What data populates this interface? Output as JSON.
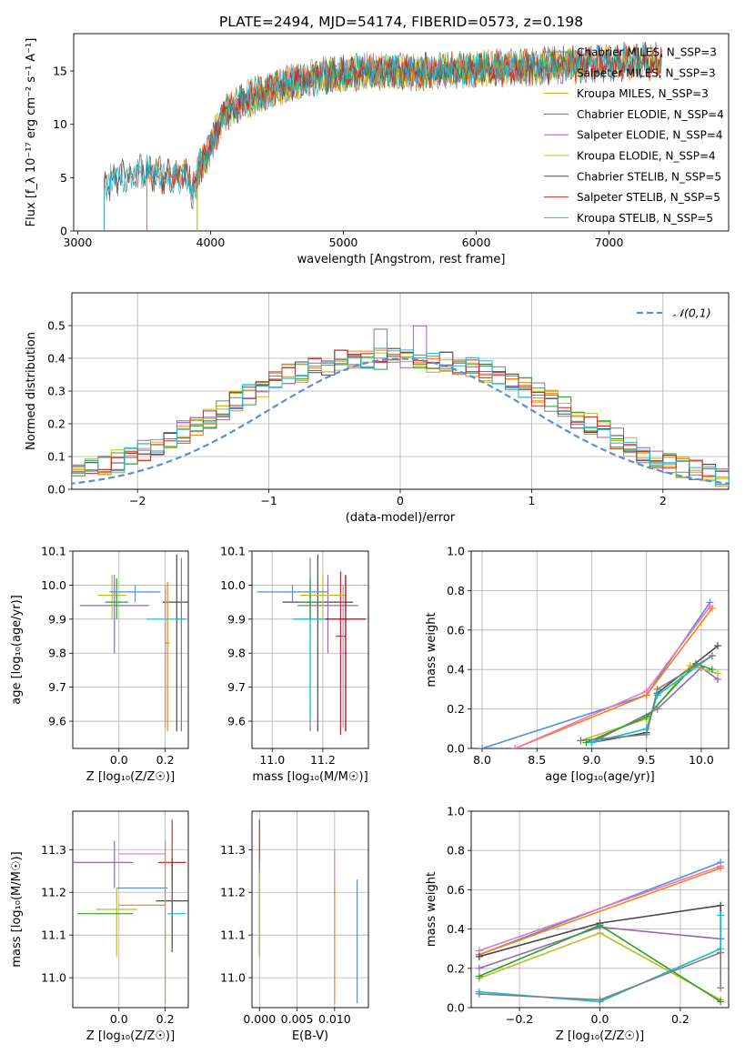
{
  "chart_data": [
    {
      "id": "spectrum",
      "type": "line",
      "title": "PLATE=2494, MJD=54174, FIBERID=0573, z=0.198",
      "xlabel": "wavelength [Angstrom, rest frame]",
      "ylabel": "Flux [f_λ 10⁻¹⁷ erg cm⁻² s⁻¹ A⁻¹]",
      "xlim": [
        2970,
        7900
      ],
      "ylim": [
        0,
        18.5
      ],
      "xticks": [
        3000,
        4000,
        5000,
        6000,
        7000
      ],
      "yticks": [
        0,
        5,
        10,
        15
      ],
      "legend_position": "top-right",
      "series": [
        {
          "name": "Chabrier MILES, N_SSP=3",
          "color": "#7f7f7f",
          "x_range": [
            3200,
            7300
          ]
        },
        {
          "name": "Salpeter MILES, N_SSP=3",
          "color": "#ff7f0e",
          "x_range": [
            3520,
            7400
          ]
        },
        {
          "name": "Kroupa MILES, N_SSP=3",
          "color": "#c8a020",
          "x_range": [
            3900,
            7400
          ]
        },
        {
          "name": "Chabrier ELODIE, N_SSP=4",
          "color": "#2ca02c",
          "x_range": [
            3900,
            6800
          ]
        },
        {
          "name": "Salpeter ELODIE, N_SSP=4",
          "color": "#9467bd",
          "x_range": [
            3900,
            6800
          ]
        },
        {
          "name": "Kroupa ELODIE, N_SSP=4",
          "color": "#bcbd22",
          "x_range": [
            3900,
            6800
          ]
        },
        {
          "name": "Chabrier STELIB, N_SSP=5",
          "color": "#4a4a4a",
          "x_range": [
            3200,
            7400
          ]
        },
        {
          "name": "Salpeter STELIB, N_SSP=5",
          "color": "#d62728",
          "x_range": [
            3520,
            7400
          ]
        },
        {
          "name": "Kroupa STELIB, N_SSP=5",
          "color": "#17becf",
          "x_range": [
            3200,
            7300
          ]
        }
      ],
      "trend": {
        "x": [
          3200,
          3300,
          3500,
          3700,
          3850,
          3950,
          4000,
          4100,
          4300,
          4500,
          4700,
          5000,
          5200,
          5500,
          5800,
          6100,
          6500,
          6800,
          7000,
          7300
        ],
        "y": [
          4.0,
          5.0,
          5.5,
          5.2,
          5.0,
          6.5,
          8.0,
          11.0,
          12.5,
          13.5,
          14.2,
          14.8,
          15.0,
          14.9,
          15.0,
          15.2,
          15.4,
          15.6,
          15.8,
          15.9
        ]
      }
    },
    {
      "id": "residual-histogram",
      "type": "area",
      "xlabel": "(data-model)/error",
      "ylabel": "Normed distribution",
      "xlim": [
        -2.5,
        2.5
      ],
      "ylim": [
        0,
        0.6
      ],
      "xticks": [
        -2,
        -1,
        0,
        1,
        2
      ],
      "yticks": [
        0.0,
        0.1,
        0.2,
        0.3,
        0.4,
        0.5
      ],
      "xtick_labels": [
        "−2",
        "−1",
        "0",
        "1",
        "2"
      ],
      "legend_position": "top-right",
      "reference_label": "𝒩(0,1)",
      "reference_color": "#5b8dd9",
      "bin_width": 0.1,
      "mean_profile": [
        0.02,
        0.025,
        0.03,
        0.035,
        0.04,
        0.05,
        0.06,
        0.07,
        0.085,
        0.1,
        0.115,
        0.135,
        0.155,
        0.175,
        0.2,
        0.22,
        0.24,
        0.27,
        0.29,
        0.31,
        0.33,
        0.35,
        0.36,
        0.37,
        0.38,
        0.39,
        0.39,
        0.4,
        0.4,
        0.4,
        0.4,
        0.4,
        0.39,
        0.39,
        0.38,
        0.37,
        0.36,
        0.34,
        0.33,
        0.31,
        0.29,
        0.27,
        0.25,
        0.22,
        0.2,
        0.18,
        0.155,
        0.135,
        0.115,
        0.1,
        0.085,
        0.07,
        0.06,
        0.05,
        0.04,
        0.035,
        0.03,
        0.025,
        0.02,
        0.02
      ],
      "series": [
        {
          "color": "#7f7f7f"
        },
        {
          "color": "#ff7f0e"
        },
        {
          "color": "#c8a020"
        },
        {
          "color": "#2ca02c"
        },
        {
          "color": "#9467bd"
        },
        {
          "color": "#bcbd22"
        },
        {
          "color": "#4a4a4a"
        },
        {
          "color": "#d62728"
        },
        {
          "color": "#17becf"
        }
      ]
    },
    {
      "id": "age-vs-z",
      "type": "scatter",
      "xlabel": "Z [log₁₀(Z/Z☉)]",
      "ylabel": "age  [log₁₀(age/yr)]",
      "xlim": [
        -0.2,
        0.3
      ],
      "ylim": [
        9.52,
        10.1
      ],
      "xticks": [
        0.0,
        0.2
      ],
      "yticks": [
        9.6,
        9.7,
        9.8,
        9.9,
        10.0,
        10.1
      ],
      "points": [
        {
          "x": 0.25,
          "y": 9.95,
          "xerr": 0.06,
          "yerr": [
            0.38,
            0.14
          ],
          "color": "#4a4a4a"
        },
        {
          "x": 0.27,
          "y": 9.9,
          "xerr": 0.02,
          "yerr": [
            0.33,
            0.18
          ],
          "color": "#7f7f7f"
        },
        {
          "x": 0.2,
          "y": 9.9,
          "xerr": 0.08,
          "yerr": [
            0.3,
            0.1
          ],
          "color": "#17becf"
        },
        {
          "x": 0.21,
          "y": 9.83,
          "xerr": 0.01,
          "yerr": [
            0.26,
            0.18
          ],
          "color": "#ff7f0e"
        },
        {
          "x": 0.2,
          "y": 9.8,
          "xerr": 0.005,
          "yerr": [
            0.22,
            0.2
          ],
          "color": "#e377c2"
        },
        {
          "x": -0.02,
          "y": 9.94,
          "xerr": 0.15,
          "yerr": [
            0.14,
            0.09
          ],
          "color": "#9467bd"
        },
        {
          "x": -0.03,
          "y": 9.97,
          "xerr": 0.06,
          "yerr": [
            0.07,
            0.06
          ],
          "color": "#bcbd22"
        },
        {
          "x": -0.01,
          "y": 9.95,
          "xerr": 0.05,
          "yerr": [
            0.05,
            0.07
          ],
          "color": "#2ca02c"
        },
        {
          "x": 0.07,
          "y": 9.98,
          "xerr": 0.11,
          "yerr": [
            0.03,
            0.02
          ],
          "color": "#5b8dd9"
        }
      ]
    },
    {
      "id": "age-vs-mass",
      "type": "scatter",
      "xlabel": "mass [log₁₀(M/M☉)]",
      "ylabel": "",
      "xlim": [
        10.92,
        11.38
      ],
      "ylim": [
        9.52,
        10.1
      ],
      "xticks": [
        11.0,
        11.2
      ],
      "yticks": [
        9.6,
        9.7,
        9.8,
        9.9,
        10.0,
        10.1
      ],
      "points": [
        {
          "x": 11.18,
          "y": 9.95,
          "xerr": 0.14,
          "yerr": [
            0.38,
            0.14
          ],
          "color": "#4a4a4a"
        },
        {
          "x": 11.15,
          "y": 9.9,
          "xerr": 0.06,
          "yerr": [
            0.33,
            0.18
          ],
          "color": "#7f7f7f"
        },
        {
          "x": 11.15,
          "y": 9.9,
          "xerr": 0.07,
          "yerr": [
            0.3,
            0.1
          ],
          "color": "#17becf"
        },
        {
          "x": 11.27,
          "y": 9.85,
          "xerr": 0.02,
          "yerr": [
            0.29,
            0.19
          ],
          "color": "#d62728"
        },
        {
          "x": 11.28,
          "y": 9.8,
          "xerr": 0.015,
          "yerr": [
            0.22,
            0.2
          ],
          "color": "#e377c2"
        },
        {
          "x": 11.22,
          "y": 9.94,
          "xerr": 0.12,
          "yerr": [
            0.14,
            0.09
          ],
          "color": "#9467bd"
        },
        {
          "x": 11.2,
          "y": 9.97,
          "xerr": 0.09,
          "yerr": [
            0.07,
            0.06
          ],
          "color": "#bcbd22"
        },
        {
          "x": 11.15,
          "y": 9.95,
          "xerr": 0.04,
          "yerr": [
            0.05,
            0.07
          ],
          "color": "#2ca02c"
        },
        {
          "x": 11.08,
          "y": 9.98,
          "xerr": 0.14,
          "yerr": [
            0.03,
            0.02
          ],
          "color": "#5b8dd9"
        },
        {
          "x": 11.29,
          "y": 9.9,
          "xerr": 0.08,
          "yerr": [
            0.33,
            0.13
          ],
          "color": "#8b0000"
        }
      ]
    },
    {
      "id": "mass-weight-vs-age",
      "type": "line",
      "xlabel": "age  [log₁₀(age/yr)]",
      "ylabel": "mass weight",
      "xlim": [
        7.9,
        10.25
      ],
      "ylim": [
        0,
        1.0
      ],
      "xticks": [
        8.0,
        8.5,
        9.0,
        9.5,
        10.0
      ],
      "yticks": [
        0.0,
        0.2,
        0.4,
        0.6,
        0.8,
        1.0
      ],
      "series": [
        {
          "color": "#5b8dd9",
          "x": [
            8.0,
            9.5,
            10.08
          ],
          "y": [
            0.0,
            0.27,
            0.74
          ]
        },
        {
          "color": "#ff7f0e",
          "x": [
            8.3,
            9.5,
            10.1
          ],
          "y": [
            0.0,
            0.27,
            0.71
          ]
        },
        {
          "color": "#e377c2",
          "x": [
            8.3,
            9.5,
            10.08
          ],
          "y": [
            0.0,
            0.29,
            0.72
          ]
        },
        {
          "color": "#9467bd",
          "x": [
            9.0,
            9.6,
            10.0,
            10.15
          ],
          "y": [
            0.03,
            0.2,
            0.41,
            0.35
          ]
        },
        {
          "color": "#4a4a4a",
          "x": [
            9.0,
            9.5,
            9.6,
            10.15
          ],
          "y": [
            0.03,
            0.08,
            0.28,
            0.52
          ]
        },
        {
          "color": "#bcbd22",
          "x": [
            8.9,
            9.5,
            9.9,
            10.15
          ],
          "y": [
            0.04,
            0.15,
            0.42,
            0.38
          ]
        },
        {
          "color": "#2ca02c",
          "x": [
            8.95,
            9.5,
            9.95,
            10.1
          ],
          "y": [
            0.03,
            0.16,
            0.43,
            0.4
          ]
        },
        {
          "color": "#17becf",
          "x": [
            9.0,
            9.5,
            9.6,
            10.1
          ],
          "y": [
            0.03,
            0.1,
            0.27,
            0.47
          ]
        },
        {
          "color": "#7f7f7f",
          "x": [
            8.9,
            9.5,
            9.6,
            10.1
          ],
          "y": [
            0.04,
            0.07,
            0.3,
            0.47
          ]
        }
      ]
    },
    {
      "id": "mass-vs-z",
      "type": "scatter",
      "xlabel": "Z [log₁₀(Z/Z☉)]",
      "ylabel": "mass [log₁₀(M/M☉)]",
      "xlim": [
        -0.2,
        0.3
      ],
      "ylim": [
        10.93,
        11.39
      ],
      "xticks": [
        0.0,
        0.2
      ],
      "yticks": [
        11.0,
        11.1,
        11.2,
        11.3
      ],
      "points": [
        {
          "x": 0.23,
          "y": 11.27,
          "xerr": 0.06,
          "yerr": [
            0.04,
            0.1
          ],
          "color": "#d62728"
        },
        {
          "x": 0.1,
          "y": 11.29,
          "xerr": 0.1,
          "yerr": [
            0.0,
            0.0
          ],
          "color": "#e377c2"
        },
        {
          "x": -0.08,
          "y": 11.27,
          "xerr": 0.14,
          "yerr": [
            0.0,
            0.0
          ],
          "color": "#9467bd"
        },
        {
          "x": 0.1,
          "y": 11.21,
          "xerr": 0.11,
          "yerr": [
            0.0,
            0.0
          ],
          "color": "#5b8dd9"
        },
        {
          "x": 0.1,
          "y": 11.17,
          "xerr": 0.1,
          "yerr": [
            0.0,
            0.0
          ],
          "color": "#ff7f0e"
        },
        {
          "x": 0.23,
          "y": 11.18,
          "xerr": 0.07,
          "yerr": [
            0.12,
            0.1
          ],
          "color": "#4a4a4a"
        },
        {
          "x": 0.25,
          "y": 11.15,
          "xerr": 0.04,
          "yerr": [
            0.0,
            0.0
          ],
          "color": "#17becf"
        },
        {
          "x": -0.01,
          "y": 11.16,
          "xerr": 0.09,
          "yerr": [
            0.11,
            0.05
          ],
          "color": "#bcbd22"
        },
        {
          "x": -0.06,
          "y": 11.15,
          "xerr": 0.12,
          "yerr": [
            0.0,
            0.0
          ],
          "color": "#2ca02c"
        },
        {
          "x": 0.2,
          "y": 11.2,
          "xerr": 0.0,
          "yerr": [
            0.26,
            0.12
          ],
          "color": "#ff7f0e"
        },
        {
          "x": -0.02,
          "y": 11.3,
          "xerr": 0.0,
          "yerr": [
            0.09,
            0.02
          ],
          "color": "#9467bd"
        }
      ]
    },
    {
      "id": "mass-vs-ebv",
      "type": "scatter",
      "xlabel": "E(B-V)",
      "ylabel": "",
      "xlim": [
        -0.001,
        0.0145
      ],
      "ylim": [
        10.93,
        11.39
      ],
      "xticks": [
        0.0,
        0.005,
        0.01
      ],
      "xtick_labels": [
        "0.000",
        "0.005",
        "0.010"
      ],
      "yticks": [
        11.0,
        11.1,
        11.2,
        11.3
      ],
      "points": [
        {
          "x": 0.0,
          "y": 11.27,
          "yerr": [
            0.1,
            0.1
          ],
          "color": "#d62728"
        },
        {
          "x": 0.0,
          "y": 11.22,
          "yerr": [
            0.17,
            0.05
          ],
          "color": "#17becf"
        },
        {
          "x": 0.0,
          "y": 11.15,
          "yerr": [
            0.1,
            0.1
          ],
          "color": "#bcbd22"
        },
        {
          "x": 0.01,
          "y": 11.08,
          "yerr": [
            0.14,
            0.14
          ],
          "color": "#ff7f0e"
        },
        {
          "x": 0.01,
          "y": 11.22,
          "yerr": [
            0.0,
            0.08
          ],
          "color": "#e377c2"
        },
        {
          "x": 0.013,
          "y": 11.09,
          "yerr": [
            0.15,
            0.14
          ],
          "color": "#5b8dd9"
        }
      ]
    },
    {
      "id": "mass-weight-vs-z",
      "type": "line",
      "xlabel": "Z [log₁₀(Z/Z☉)]",
      "ylabel": "mass weight",
      "xlim": [
        -0.32,
        0.32
      ],
      "ylim": [
        0,
        1.0
      ],
      "xticks": [
        -0.2,
        0.0,
        0.2
      ],
      "xtick_labels": [
        "−0.2",
        "0.0",
        "0.2"
      ],
      "yticks": [
        0.0,
        0.2,
        0.4,
        0.6,
        0.8,
        1.0
      ],
      "series": [
        {
          "color": "#5b8dd9",
          "x": [
            -0.3,
            0.3
          ],
          "y": [
            0.27,
            0.74
          ]
        },
        {
          "color": "#ff7f0e",
          "x": [
            -0.3,
            0.3
          ],
          "y": [
            0.27,
            0.71
          ]
        },
        {
          "color": "#e377c2",
          "x": [
            -0.3,
            0.3
          ],
          "y": [
            0.29,
            0.72
          ]
        },
        {
          "color": "#9467bd",
          "x": [
            -0.3,
            0.0,
            0.3,
            0.3
          ],
          "y": [
            0.2,
            0.41,
            0.35,
            0.35
          ]
        },
        {
          "color": "#4a4a4a",
          "x": [
            -0.3,
            0.0,
            0.3,
            0.3
          ],
          "y": [
            0.26,
            0.43,
            0.52,
            0.28
          ]
        },
        {
          "color": "#bcbd22",
          "x": [
            -0.3,
            0.0,
            0.3
          ],
          "y": [
            0.15,
            0.38,
            0.04
          ]
        },
        {
          "color": "#2ca02c",
          "x": [
            -0.3,
            0.0,
            0.3
          ],
          "y": [
            0.16,
            0.42,
            0.03
          ]
        },
        {
          "color": "#17becf",
          "x": [
            -0.3,
            0.0,
            0.3,
            0.3
          ],
          "y": [
            0.08,
            0.03,
            0.3,
            0.47
          ]
        },
        {
          "color": "#7f7f7f",
          "x": [
            -0.3,
            0.0,
            0.3,
            0.3
          ],
          "y": [
            0.07,
            0.04,
            0.28,
            0.1
          ]
        }
      ]
    }
  ]
}
